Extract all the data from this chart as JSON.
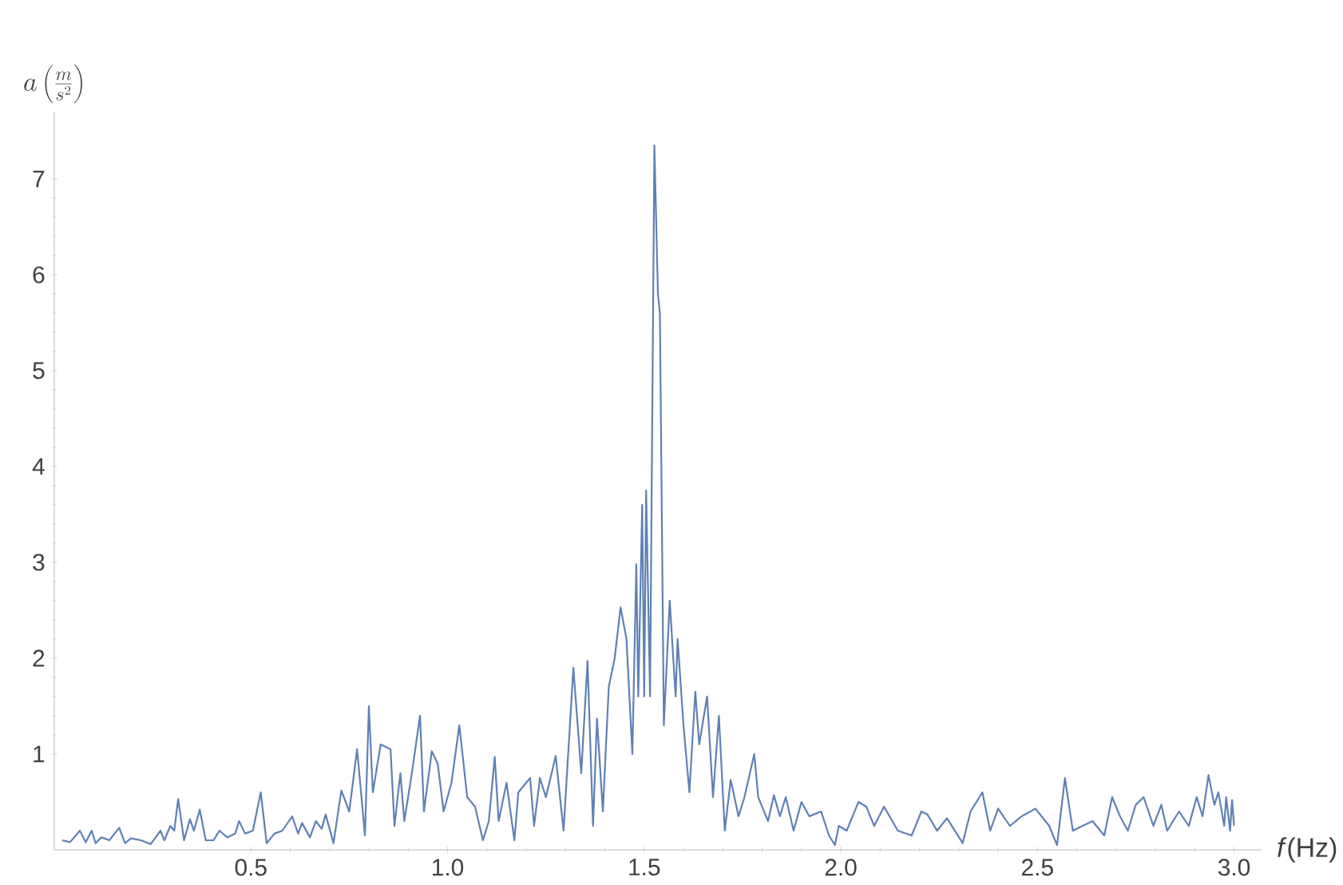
{
  "chart_data": {
    "type": "line",
    "xlabel": "*f*(Hz)",
    "ylabel": "a\\left(\\frac{m}{s^{2}}\\right)",
    "color": "#5e81b5",
    "xlim": [
      0,
      3.07
    ],
    "ylim": [
      0,
      7.7
    ],
    "xticks": [
      {
        "value": 0.5,
        "label": "0.5"
      },
      {
        "value": 1,
        "label": "1.0"
      },
      {
        "value": 1.5,
        "label": "1.5"
      },
      {
        "value": 2,
        "label": "2.0"
      },
      {
        "value": 2.5,
        "label": "2.5"
      },
      {
        "value": 3,
        "label": "3.0"
      }
    ],
    "yticks": [
      1,
      2,
      3,
      4,
      5,
      6,
      7
    ],
    "marker": "none",
    "line_style": "solid",
    "x": [
      0.02,
      0.04,
      0.065,
      0.08,
      0.095,
      0.105,
      0.12,
      0.14,
      0.165,
      0.18,
      0.195,
      0.22,
      0.245,
      0.27,
      0.28,
      0.295,
      0.305,
      0.315,
      0.33,
      0.345,
      0.355,
      0.37,
      0.385,
      0.405,
      0.42,
      0.44,
      0.46,
      0.47,
      0.485,
      0.505,
      0.525,
      0.54,
      0.56,
      0.58,
      0.605,
      0.62,
      0.63,
      0.65,
      0.665,
      0.68,
      0.69,
      0.71,
      0.73,
      0.75,
      0.77,
      0.79,
      0.8,
      0.81,
      0.83,
      0.855,
      0.865,
      0.88,
      0.89,
      0.91,
      0.93,
      0.94,
      0.96,
      0.975,
      0.99,
      1.01,
      1.03,
      1.05,
      1.07,
      1.09,
      1.105,
      1.12,
      1.13,
      1.15,
      1.17,
      1.18,
      1.21,
      1.22,
      1.235,
      1.25,
      1.275,
      1.295,
      1.32,
      1.34,
      1.356,
      1.37,
      1.38,
      1.395,
      1.41,
      1.425,
      1.44,
      1.455,
      1.47,
      1.48,
      1.485,
      1.495,
      1.5,
      1.505,
      1.515,
      1.526,
      1.535,
      1.54,
      1.55,
      1.565,
      1.58,
      1.585,
      1.6,
      1.615,
      1.63,
      1.64,
      1.66,
      1.675,
      1.69,
      1.705,
      1.72,
      1.74,
      1.755,
      1.78,
      1.79,
      1.815,
      1.83,
      1.845,
      1.86,
      1.88,
      1.9,
      1.92,
      1.95,
      1.97,
      1.985,
      1.995,
      2.015,
      2.045,
      2.065,
      2.085,
      2.11,
      2.145,
      2.18,
      2.205,
      2.22,
      2.245,
      2.27,
      2.31,
      2.33,
      2.36,
      2.38,
      2.4,
      2.43,
      2.46,
      2.495,
      2.53,
      2.55,
      2.57,
      2.59,
      2.615,
      2.64,
      2.67,
      2.69,
      2.71,
      2.73,
      2.75,
      2.77,
      2.795,
      2.815,
      2.83,
      2.86,
      2.885,
      2.905,
      2.92,
      2.935,
      2.95,
      2.96,
      2.975,
      2.98,
      2.99,
      2.995,
      3.0
    ],
    "values": [
      0.1,
      0.08,
      0.2,
      0.08,
      0.2,
      0.07,
      0.13,
      0.1,
      0.23,
      0.07,
      0.12,
      0.1,
      0.06,
      0.2,
      0.1,
      0.25,
      0.2,
      0.53,
      0.1,
      0.32,
      0.2,
      0.42,
      0.1,
      0.1,
      0.2,
      0.13,
      0.17,
      0.3,
      0.17,
      0.2,
      0.6,
      0.07,
      0.17,
      0.2,
      0.35,
      0.17,
      0.28,
      0.13,
      0.3,
      0.22,
      0.37,
      0.07,
      0.62,
      0.4,
      1.05,
      0.15,
      1.5,
      0.6,
      1.1,
      1.05,
      0.25,
      0.8,
      0.3,
      0.82,
      1.4,
      0.4,
      1.03,
      0.9,
      0.4,
      0.7,
      1.3,
      0.55,
      0.45,
      0.1,
      0.3,
      0.97,
      0.3,
      0.7,
      0.1,
      0.6,
      0.75,
      0.25,
      0.75,
      0.55,
      0.98,
      0.2,
      1.9,
      0.8,
      1.97,
      0.25,
      1.37,
      0.4,
      1.7,
      2.0,
      2.53,
      2.2,
      1.0,
      2.98,
      1.6,
      3.6,
      1.6,
      3.75,
      1.6,
      7.35,
      5.8,
      5.6,
      1.3,
      2.6,
      1.6,
      2.2,
      1.3,
      0.6,
      1.65,
      1.1,
      1.6,
      0.55,
      1.4,
      0.2,
      0.73,
      0.35,
      0.55,
      1.0,
      0.55,
      0.3,
      0.57,
      0.35,
      0.55,
      0.2,
      0.5,
      0.35,
      0.4,
      0.15,
      0.05,
      0.25,
      0.2,
      0.5,
      0.45,
      0.25,
      0.45,
      0.2,
      0.15,
      0.4,
      0.37,
      0.2,
      0.33,
      0.07,
      0.4,
      0.6,
      0.2,
      0.43,
      0.25,
      0.35,
      0.43,
      0.25,
      0.05,
      0.75,
      0.2,
      0.25,
      0.3,
      0.15,
      0.55,
      0.35,
      0.2,
      0.47,
      0.55,
      0.25,
      0.47,
      0.2,
      0.4,
      0.25,
      0.55,
      0.35,
      0.78,
      0.47,
      0.6,
      0.25,
      0.55,
      0.2,
      0.52,
      0.25
    ]
  }
}
